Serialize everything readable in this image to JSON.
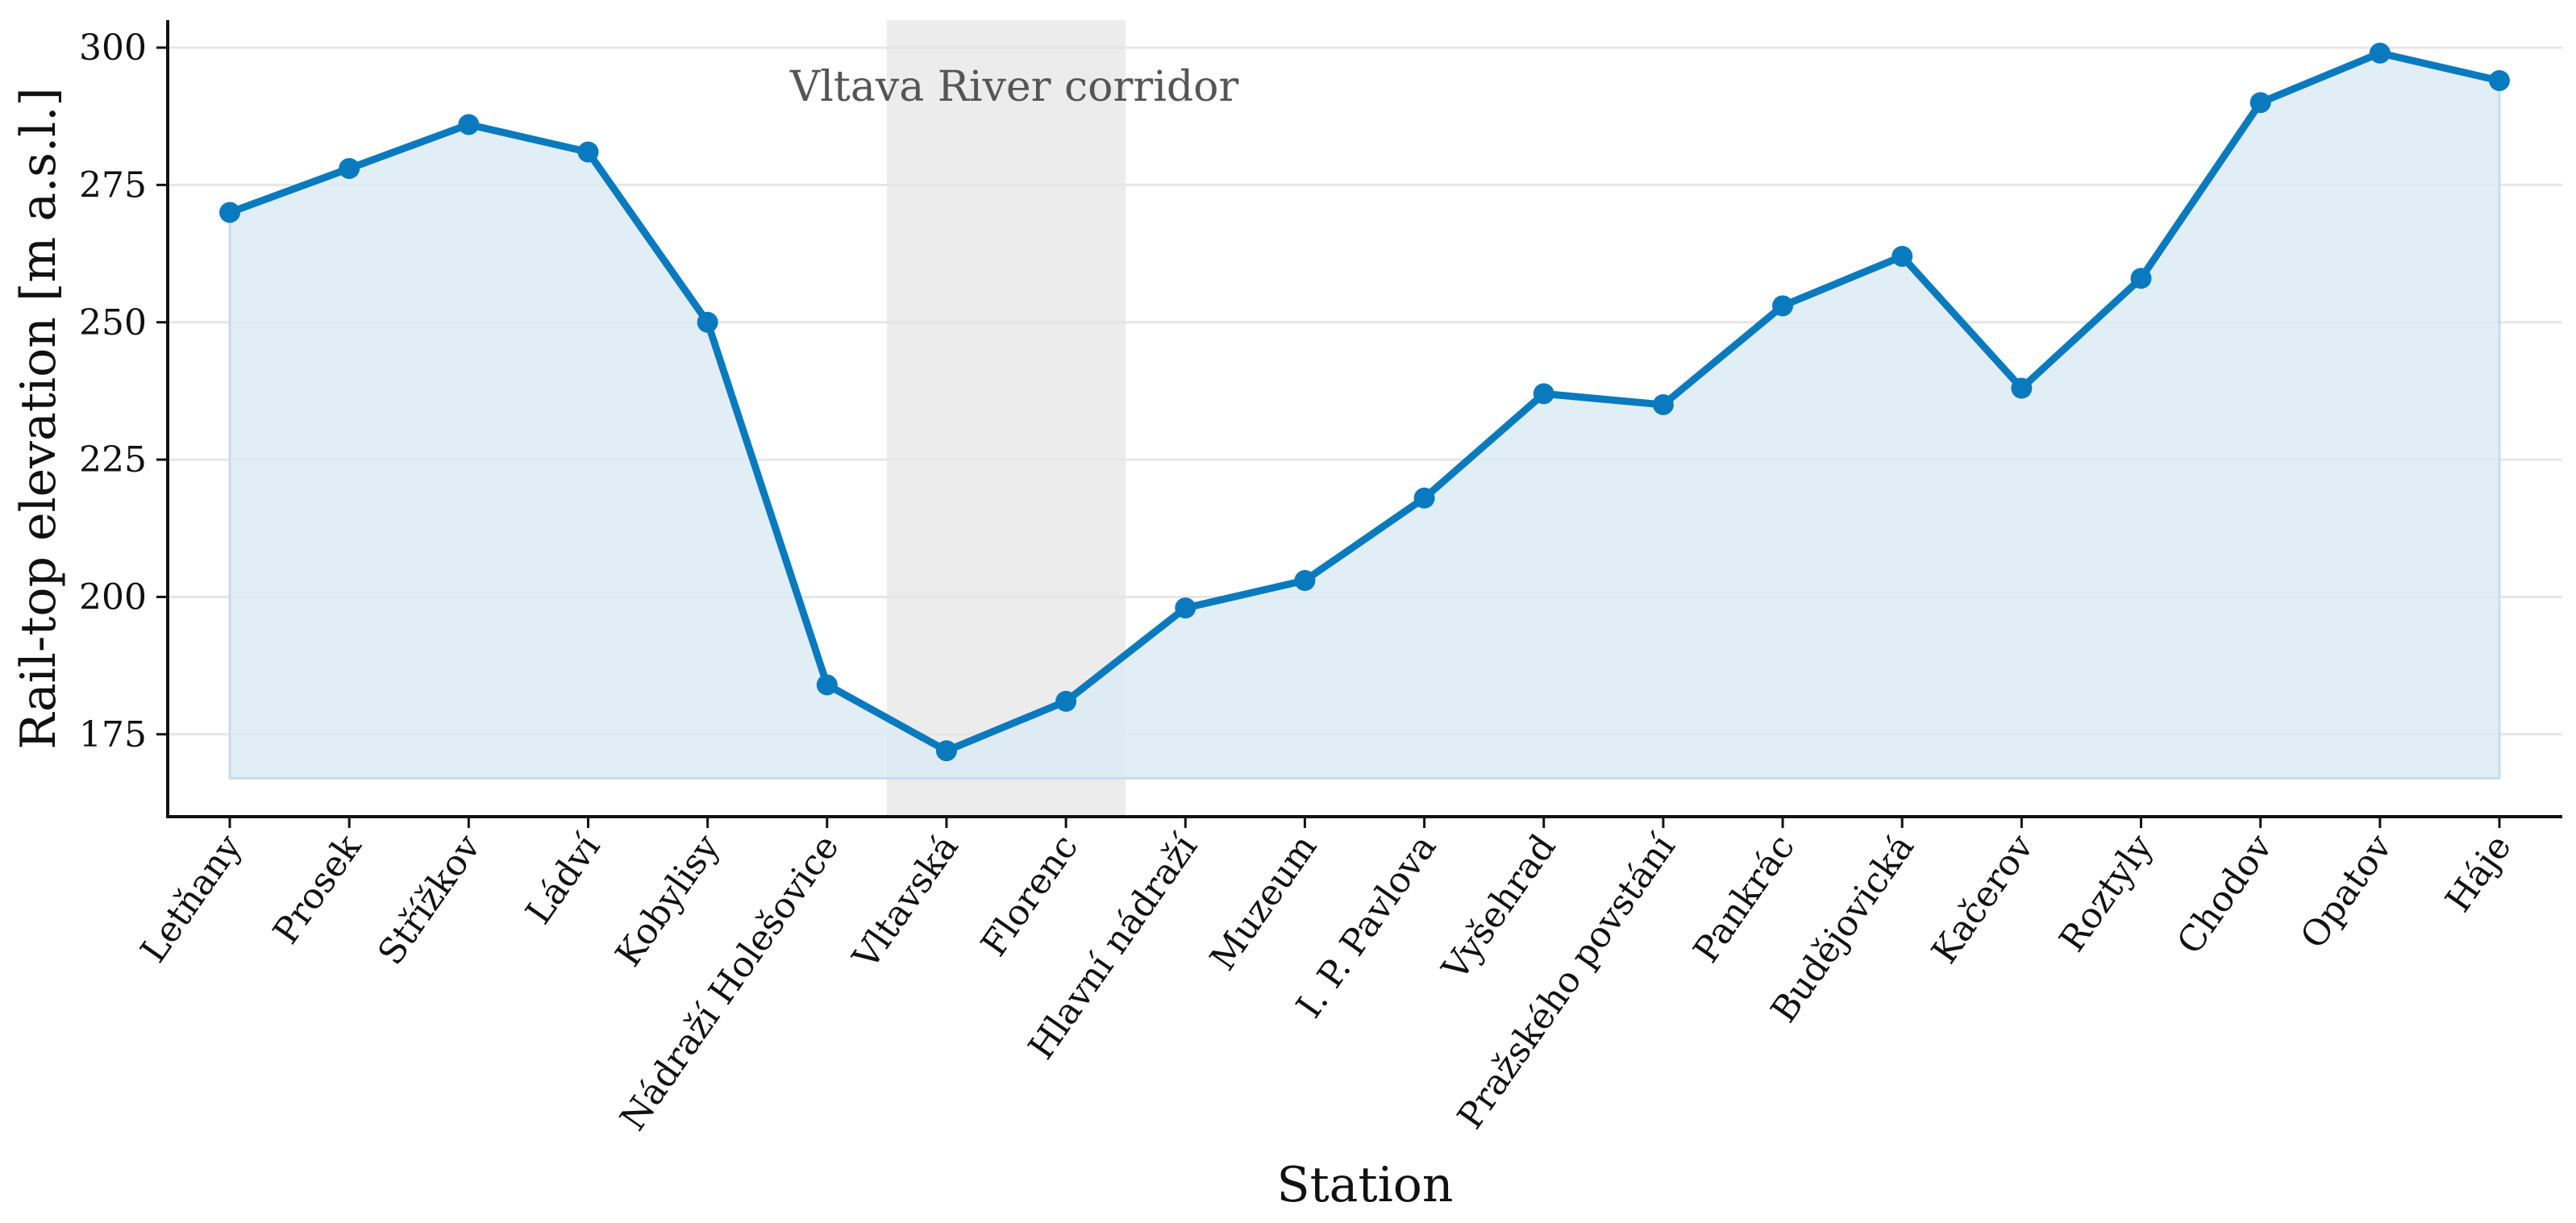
{
  "chart_data": {
    "type": "area",
    "title": "",
    "xlabel": "Station",
    "ylabel": "Rail-top elevation [m a.s.l.]",
    "categories": [
      "Letňany",
      "Prosek",
      "Střížkov",
      "Ládví",
      "Kobylisy",
      "Nádraží Holešovice",
      "Vltavská",
      "Florenc",
      "Hlavní nádraží",
      "Muzeum",
      "I. P. Pavlova",
      "Vyšehrad",
      "Pražského povstání",
      "Pankrác",
      "Budějovická",
      "Kačerov",
      "Roztyly",
      "Chodov",
      "Opatov",
      "Háje"
    ],
    "series": [
      {
        "values": [
          270,
          278,
          286,
          281,
          250,
          184,
          172,
          181,
          198,
          203,
          218,
          237,
          235,
          253,
          262,
          238,
          258,
          290,
          299,
          294
        ]
      }
    ],
    "area_base": 167,
    "ylim": [
      160,
      305
    ],
    "yticks": [
      175,
      200,
      225,
      250,
      275,
      300
    ],
    "grid": "horizontal",
    "legend": "none",
    "highlight_band": {
      "label": "Vltava River corridor",
      "from_station": "Vltavská",
      "to_station": "Florenc"
    },
    "colors": {
      "line": "#0a7abf",
      "fill": "#dcebf5",
      "band": "#ececec",
      "grid": "#e6e6e6",
      "axis": "#111111"
    }
  }
}
